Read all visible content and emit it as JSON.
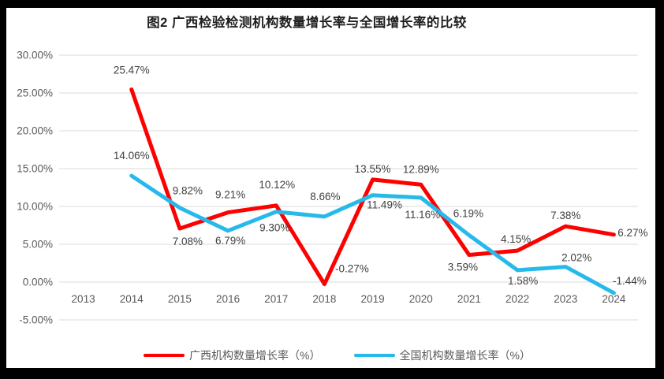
{
  "colors": {
    "background": "#000000",
    "panel": "#FFFFFF",
    "grid": "#DBDBDB",
    "axis_text": "#595959",
    "data_label_text": "#404040",
    "title_text": "#1F1F1F",
    "legend_text": "#595959",
    "series_red": "#FF0000",
    "series_blue": "#28B9EB"
  },
  "chart_data": {
    "type": "line",
    "title": "图2 广西检验检测机构数量增长率与全国增长率的比较",
    "xlabel": "",
    "ylabel": "",
    "grid": true,
    "legend_position": "bottom",
    "ylim": [
      -5,
      30
    ],
    "x_categories": [
      "2013",
      "2014",
      "2015",
      "2016",
      "2017",
      "2018",
      "2019",
      "2020",
      "2021",
      "2022",
      "2023",
      "2024"
    ],
    "y_axis": {
      "tick_values": [
        30,
        25,
        20,
        15,
        10,
        5,
        0,
        -5
      ],
      "tick_labels": [
        "30.00%",
        "25.00%",
        "20.00%",
        "15.00%",
        "10.00%",
        "5.00%",
        "0.00%",
        "-5.00%"
      ]
    },
    "series": [
      {
        "name": "广西机构数量增长率（%）",
        "color": "#FF0000",
        "x_start_index": 1,
        "values": [
          25.47,
          7.08,
          9.21,
          10.12,
          -0.27,
          13.55,
          12.89,
          3.59,
          4.15,
          7.38,
          6.27
        ],
        "labels": [
          "25.47%",
          "7.08%",
          "9.21%",
          "10.12%",
          "-0.27%",
          "13.55%",
          "12.89%",
          "3.59%",
          "4.15%",
          "7.38%",
          "6.27%"
        ],
        "label_offsets": [
          [
            0,
            -20
          ],
          [
            10,
            21
          ],
          [
            3,
            -18
          ],
          [
            1,
            -22
          ],
          [
            35,
            -15
          ],
          [
            0,
            -9
          ],
          [
            0,
            -15
          ],
          [
            -8,
            20
          ],
          [
            -2,
            -10
          ],
          [
            0,
            -9
          ],
          [
            24,
            2
          ]
        ]
      },
      {
        "name": "全国机构数量增长率（%）",
        "color": "#28B9EB",
        "x_start_index": 1,
        "values": [
          14.06,
          9.82,
          6.79,
          9.3,
          8.66,
          11.49,
          11.16,
          6.19,
          1.58,
          2.02,
          -1.44
        ],
        "labels": [
          "14.06%",
          "9.82%",
          "6.79%",
          "9.30%",
          "8.66%",
          "11.49%",
          "11.16%",
          "6.19%",
          "1.58%",
          "2.02%",
          "-1.44%"
        ],
        "label_offsets": [
          [
            0,
            -21
          ],
          [
            10,
            -17
          ],
          [
            3,
            17
          ],
          [
            -2,
            25
          ],
          [
            1,
            -21
          ],
          [
            15,
            17
          ],
          [
            2,
            26
          ],
          [
            -1,
            -23
          ],
          [
            7,
            18
          ],
          [
            14,
            -7
          ],
          [
            20,
            -11
          ]
        ]
      }
    ]
  }
}
